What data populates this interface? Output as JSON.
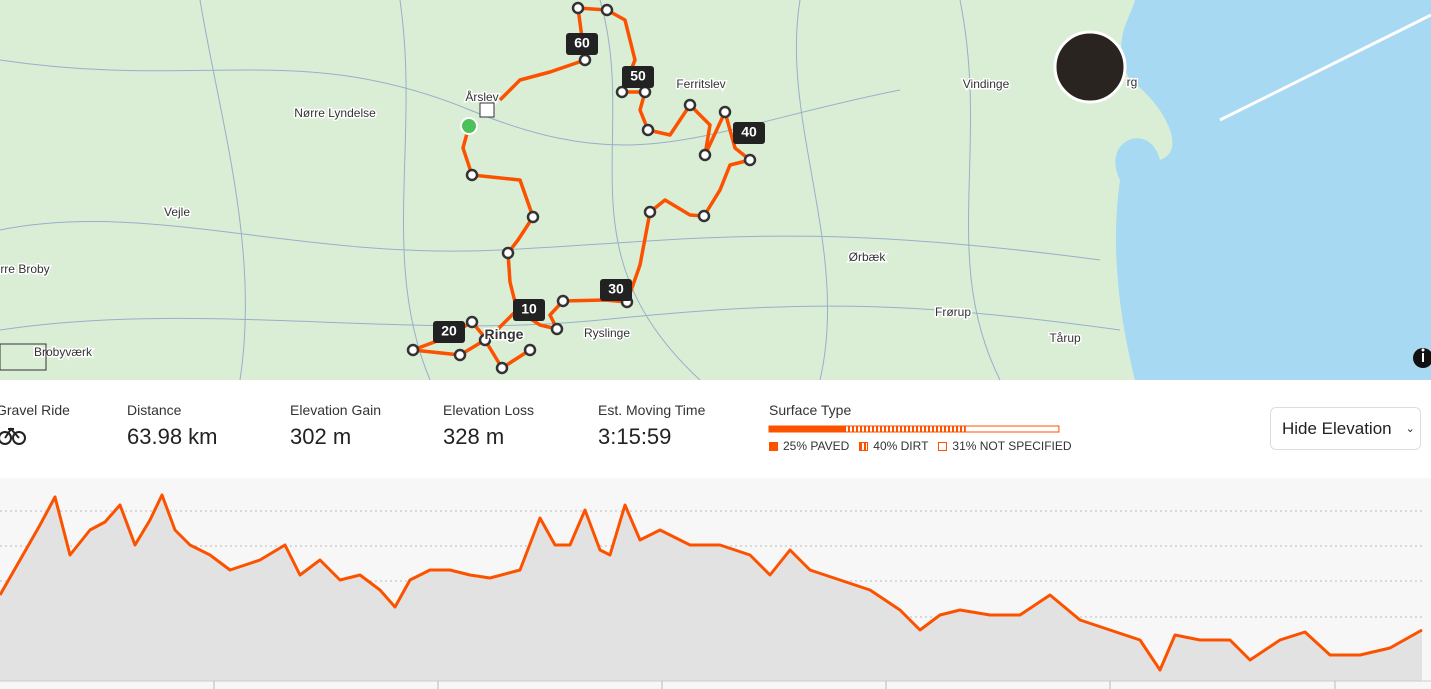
{
  "map": {
    "places": [
      "Årslev",
      "Nørre Lyndelse",
      "Vejle",
      "rre Broby",
      "Brobyværk",
      "Ringe",
      "Ryslinge",
      "Ferritslev",
      "Vindinge",
      "Ørbæk",
      "Frørup",
      "Tårup",
      "rg"
    ],
    "km_markers": [
      "60",
      "50",
      "40",
      "30",
      "20",
      "10"
    ]
  },
  "stats": {
    "activity_type": "Gravel Ride",
    "items": [
      {
        "label": "Distance",
        "value": "63.98 km"
      },
      {
        "label": "Elevation Gain",
        "value": "302 m"
      },
      {
        "label": "Elevation Loss",
        "value": "328 m"
      },
      {
        "label": "Est. Moving Time",
        "value": "3:15:59"
      }
    ],
    "surface": {
      "title": "Surface Type",
      "segments": [
        {
          "percent": 25,
          "label": "25% PAVED"
        },
        {
          "percent": 40,
          "label": "40% DIRT"
        },
        {
          "percent": 31,
          "label": "31% NOT SPECIFIED"
        }
      ]
    }
  },
  "controls": {
    "hide_elevation": "Hide Elevation"
  }
}
